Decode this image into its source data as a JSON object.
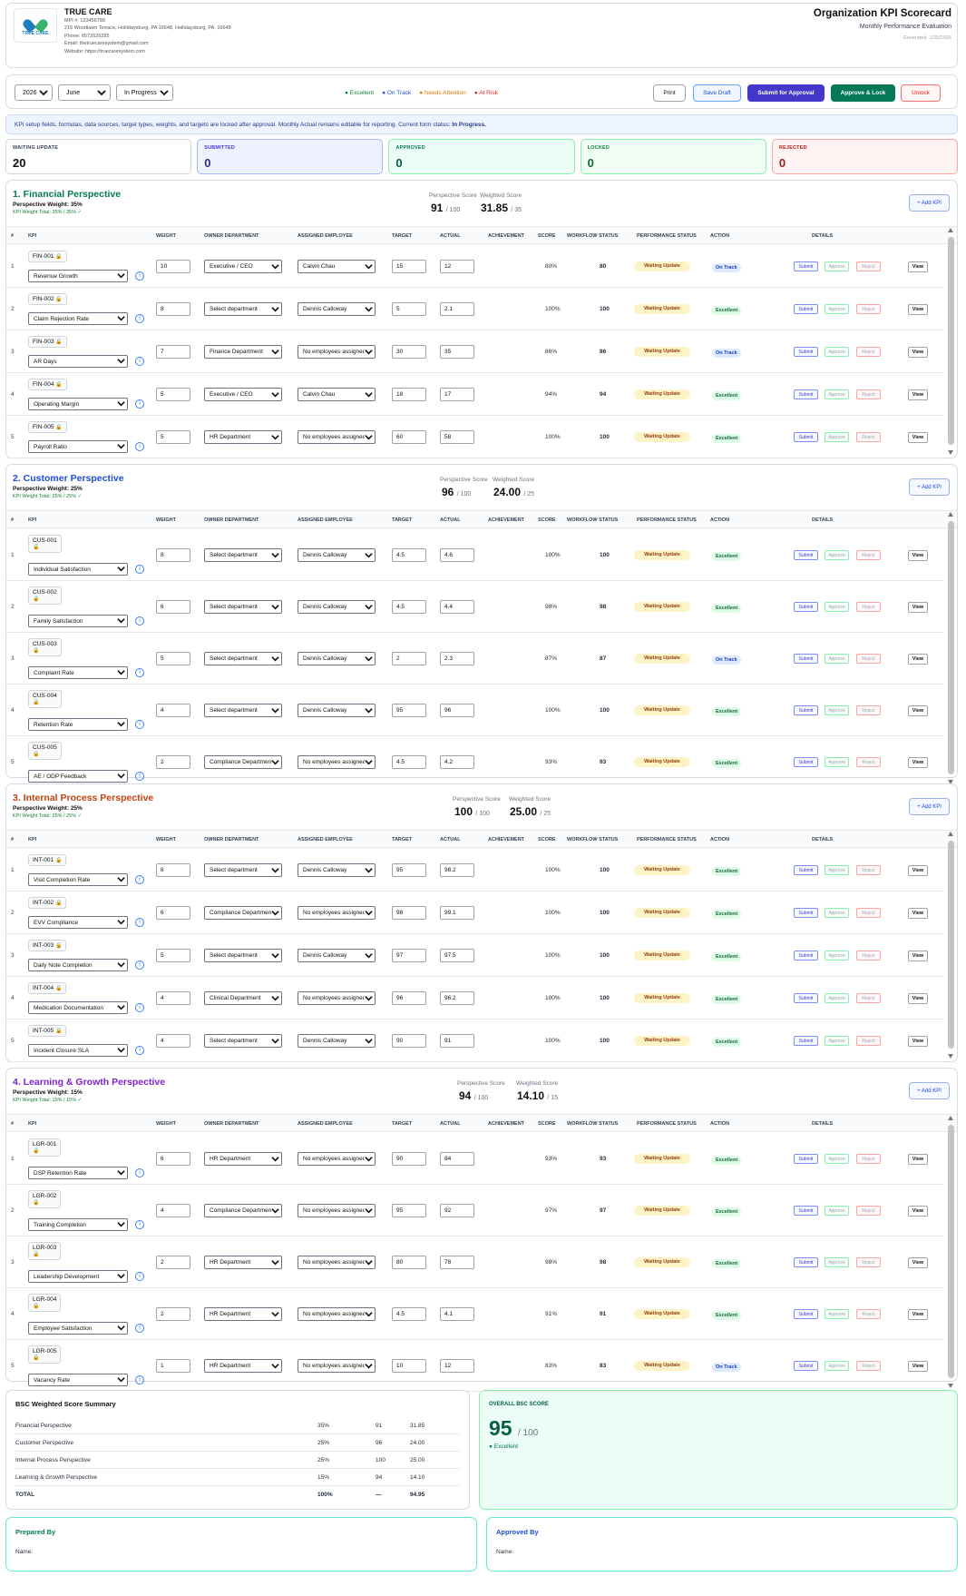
{
  "company": {
    "name": "TRUE CARE",
    "logo_text": "TRUE CARE",
    "mpi": "MPI #: 123456789",
    "address": "216 Woodlawn Terrace, Hollidaysburg, PA 16648, Hollidaysburg, PA, 16648",
    "phone": "Phone: 6572626295",
    "email": "Email: thetruecaresystem@gmail.com",
    "website": "Website: https://truecaresystem.com"
  },
  "header": {
    "title": "Organization KPI Scorecard",
    "subtitle": "Monthly Performance Evaluation",
    "generated": "Generated: 1/25/2026"
  },
  "toolbar": {
    "year": "2026",
    "month": "June",
    "status": "In Progress",
    "legend": [
      {
        "label": "● Excellent",
        "color": "#15803d"
      },
      {
        "label": "● On Track",
        "color": "#1d4ed8"
      },
      {
        "label": "● Needs Attention",
        "color": "#d97706"
      },
      {
        "label": "● At Risk",
        "color": "#dc2626"
      }
    ],
    "print": "Print",
    "save_draft": "Save Draft",
    "submit_approval": "Submit for Approval",
    "approve_lock": "Approve & Lock",
    "unlock": "Unlock"
  },
  "notice": {
    "text": "KPI setup fields, formulas, data sources, target types, weights, and targets are locked after approval. Monthly Actual remains editable for reporting. Current form status: ",
    "status": "In Progress."
  },
  "stats": [
    {
      "label": "WAITING UPDATE",
      "value": "20"
    },
    {
      "label": "SUBMITTED",
      "value": "0"
    },
    {
      "label": "APPROVED",
      "value": "0"
    },
    {
      "label": "LOCKED",
      "value": "0"
    },
    {
      "label": "REJECTED",
      "value": "0"
    }
  ],
  "columns": {
    "num": "#",
    "kpi": "KPI",
    "weight": "WEIGHT",
    "owner": "OWNER DEPARTMENT",
    "employee": "ASSIGNED EMPLOYEE",
    "target": "TARGET",
    "actual": "ACTUAL",
    "achievement": "ACHIEVEMENT",
    "score": "SCORE",
    "workflow": "WORKFLOW STATUS",
    "performance": "PERFORMANCE STATUS",
    "action": "ACTION",
    "details": "DETAILS"
  },
  "labels": {
    "perspective_score": "Perspective Score",
    "weighted_score": "Weighted Score",
    "add_kpi": "+ Add KPI",
    "submit": "Submit",
    "approve": "Approve",
    "reject": "Reject",
    "view": "View",
    "info": "i",
    "lock": "🔒"
  },
  "perspectives": [
    {
      "title": "1. Financial Perspective",
      "color": "#047857",
      "weight": "Perspective Weight: 35%",
      "total": "KPI Weight Total: 35% / 35% ✓",
      "score": "91",
      "score_max": "/ 100",
      "weighted": "31.85",
      "weighted_max": "/ 35",
      "rows": [
        {
          "n": "1",
          "code": "FIN-001",
          "name": "Revenue Growth",
          "weight": "10",
          "owner": "Executive / CEO",
          "emp": "Calvin Chau",
          "target": "15",
          "actual": "12",
          "ach": "80%",
          "score": "80",
          "wf": "Waiting Update",
          "perf": "On Track"
        },
        {
          "n": "2",
          "code": "FIN-002",
          "name": "Claim Rejection Rate",
          "weight": "8",
          "owner": "Select department",
          "emp": "Dennis Calloway",
          "target": "5",
          "actual": "2.1",
          "ach": "100%",
          "score": "100",
          "wf": "Waiting Update",
          "perf": "Excellent"
        },
        {
          "n": "3",
          "code": "FIN-003",
          "name": "AR Days",
          "weight": "7",
          "owner": "Finance Department",
          "emp": "No employees assigned",
          "target": "30",
          "actual": "35",
          "ach": "86%",
          "score": "86",
          "wf": "Waiting Update",
          "perf": "On Track"
        },
        {
          "n": "4",
          "code": "FIN-004",
          "name": "Operating Margin",
          "weight": "5",
          "owner": "Executive / CEO",
          "emp": "Calvin Chau",
          "target": "18",
          "actual": "17",
          "ach": "94%",
          "score": "94",
          "wf": "Waiting Update",
          "perf": "Excellent"
        },
        {
          "n": "5",
          "code": "FIN-005",
          "name": "Payroll Ratio",
          "weight": "5",
          "owner": "HR Department",
          "emp": "No employees assigned",
          "target": "60",
          "actual": "58",
          "ach": "100%",
          "score": "100",
          "wf": "Waiting Update",
          "perf": "Excellent"
        }
      ]
    },
    {
      "title": "2. Customer Perspective",
      "color": "#1d4ed8",
      "weight": "Perspective Weight: 25%",
      "total": "KPI Weight Total: 25% / 25% ✓",
      "score": "96",
      "score_max": "/ 100",
      "weighted": "24.00",
      "weighted_max": "/ 25",
      "rows": [
        {
          "n": "1",
          "code": "CUS-001",
          "name": "Individual Satisfaction",
          "weight": "8",
          "owner": "Select department",
          "emp": "Dennis Calloway",
          "target": "4.5",
          "actual": "4.6",
          "ach": "100%",
          "score": "100",
          "wf": "Waiting Update",
          "perf": "Excellent"
        },
        {
          "n": "2",
          "code": "CUS-002",
          "name": "Family Satisfaction",
          "weight": "6",
          "owner": "Select department",
          "emp": "Dennis Calloway",
          "target": "4.5",
          "actual": "4.4",
          "ach": "98%",
          "score": "98",
          "wf": "Waiting Update",
          "perf": "Excellent"
        },
        {
          "n": "3",
          "code": "CUS-003",
          "name": "Complaint Rate",
          "weight": "5",
          "owner": "Select department",
          "emp": "Dennis Calloway",
          "target": "2",
          "actual": "2.3",
          "ach": "87%",
          "score": "87",
          "wf": "Waiting Update",
          "perf": "On Track"
        },
        {
          "n": "4",
          "code": "CUS-004",
          "name": "Retention Rate",
          "weight": "4",
          "owner": "Select department",
          "emp": "Dennis Calloway",
          "target": "95",
          "actual": "96",
          "ach": "100%",
          "score": "100",
          "wf": "Waiting Update",
          "perf": "Excellent"
        },
        {
          "n": "5",
          "code": "CUS-005",
          "name": "AE / ODP Feedback",
          "weight": "2",
          "owner": "Compliance Department",
          "emp": "No employees assigned",
          "target": "4.5",
          "actual": "4.2",
          "ach": "93%",
          "score": "93",
          "wf": "Waiting Update",
          "perf": "Excellent"
        }
      ]
    },
    {
      "title": "3. Internal Process Perspective",
      "color": "#c2410c",
      "weight": "Perspective Weight: 25%",
      "total": "KPI Weight Total: 25% / 25% ✓",
      "score": "100",
      "score_max": "/ 100",
      "weighted": "25.00",
      "weighted_max": "/ 25",
      "rows": [
        {
          "n": "1",
          "code": "INT-001",
          "name": "Visit Completion Rate",
          "weight": "6",
          "owner": "Select department",
          "emp": "Dennis Calloway",
          "target": "95",
          "actual": "98.2",
          "ach": "100%",
          "score": "100",
          "wf": "Waiting Update",
          "perf": "Excellent"
        },
        {
          "n": "2",
          "code": "INT-002",
          "name": "EVV Compliance",
          "weight": "6",
          "owner": "Compliance Department",
          "emp": "No employees assigned",
          "target": "98",
          "actual": "99.1",
          "ach": "100%",
          "score": "100",
          "wf": "Waiting Update",
          "perf": "Excellent"
        },
        {
          "n": "3",
          "code": "INT-003",
          "name": "Daily Note Completion",
          "weight": "5",
          "owner": "Select department",
          "emp": "Dennis Calloway",
          "target": "97",
          "actual": "97.5",
          "ach": "100%",
          "score": "100",
          "wf": "Waiting Update",
          "perf": "Excellent"
        },
        {
          "n": "4",
          "code": "INT-004",
          "name": "Medication Documentation",
          "weight": "4",
          "owner": "Clinical Department",
          "emp": "No employees assigned",
          "target": "96",
          "actual": "96.2",
          "ach": "100%",
          "score": "100",
          "wf": "Waiting Update",
          "perf": "Excellent"
        },
        {
          "n": "5",
          "code": "INT-005",
          "name": "Incident Closure SLA",
          "weight": "4",
          "owner": "Select department",
          "emp": "Dennis Calloway",
          "target": "90",
          "actual": "91",
          "ach": "100%",
          "score": "100",
          "wf": "Waiting Update",
          "perf": "Excellent"
        }
      ]
    },
    {
      "title": "4. Learning & Growth Perspective",
      "color": "#7e22ce",
      "weight": "Perspective Weight: 15%",
      "total": "KPI Weight Total: 15% / 15% ✓",
      "score": "94",
      "score_max": "/ 100",
      "weighted": "14.10",
      "weighted_max": "/ 15",
      "rows": [
        {
          "n": "1",
          "code": "LGR-001",
          "name": "DSP Retention Rate",
          "weight": "6",
          "owner": "HR Department",
          "emp": "No employees assigned",
          "target": "90",
          "actual": "84",
          "ach": "93%",
          "score": "93",
          "wf": "Waiting Update",
          "perf": "Excellent"
        },
        {
          "n": "2",
          "code": "LGR-002",
          "name": "Training Completion",
          "weight": "4",
          "owner": "Compliance Department",
          "emp": "No employees assigned",
          "target": "95",
          "actual": "92",
          "ach": "97%",
          "score": "97",
          "wf": "Waiting Update",
          "perf": "Excellent"
        },
        {
          "n": "3",
          "code": "LGR-003",
          "name": "Leadership Development",
          "weight": "2",
          "owner": "HR Department",
          "emp": "No employees assigned",
          "target": "80",
          "actual": "78",
          "ach": "98%",
          "score": "98",
          "wf": "Waiting Update",
          "perf": "Excellent"
        },
        {
          "n": "4",
          "code": "LGR-004",
          "name": "Employee Satisfaction",
          "weight": "2",
          "owner": "HR Department",
          "emp": "No employees assigned",
          "target": "4.5",
          "actual": "4.1",
          "ach": "91%",
          "score": "91",
          "wf": "Waiting Update",
          "perf": "Excellent"
        },
        {
          "n": "5",
          "code": "LGR-005",
          "name": "Vacancy Rate",
          "weight": "1",
          "owner": "HR Department",
          "emp": "No employees assigned",
          "target": "10",
          "actual": "12",
          "ach": "83%",
          "score": "83",
          "wf": "Waiting Update",
          "perf": "On Track"
        }
      ]
    }
  ],
  "summary": {
    "title": "BSC Weighted Score Summary",
    "rows": [
      {
        "name": "Financial Perspective",
        "weight": "35%",
        "score": "91",
        "weighted": "31.85"
      },
      {
        "name": "Customer Perspective",
        "weight": "25%",
        "score": "96",
        "weighted": "24.00"
      },
      {
        "name": "Internal Process Perspective",
        "weight": "25%",
        "score": "100",
        "weighted": "25.00"
      },
      {
        "name": "Learning & Growth Perspective",
        "weight": "15%",
        "score": "94",
        "weighted": "14.10"
      }
    ],
    "total": {
      "name": "TOTAL",
      "weight": "100%",
      "score": "—",
      "weighted": "94.95"
    }
  },
  "overall": {
    "label": "OVERALL BSC SCORE",
    "value": "95",
    "max": "/ 100",
    "status": "● Excellent"
  },
  "sign": {
    "prepared": "Prepared By",
    "approved": "Approved By",
    "name_label": "Name:"
  }
}
